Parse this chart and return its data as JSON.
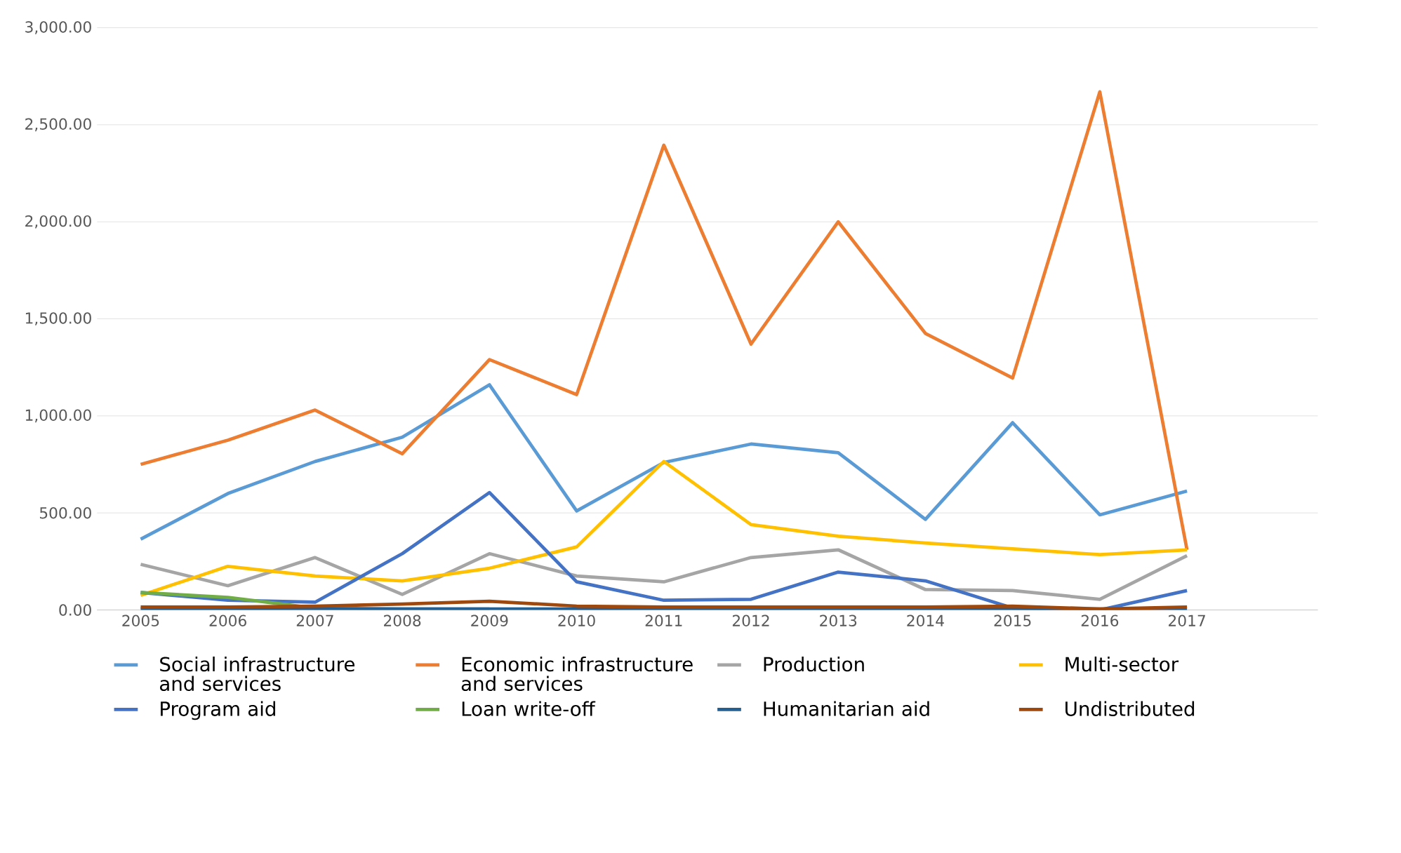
{
  "chart_data": {
    "type": "line",
    "x": [
      2005,
      2006,
      2007,
      2008,
      2009,
      2010,
      2011,
      2012,
      2013,
      2014,
      2015,
      2016,
      2017
    ],
    "xlim": [
      2004.5,
      2018.5
    ],
    "xticks": [
      2005,
      2006,
      2007,
      2008,
      2009,
      2010,
      2011,
      2012,
      2013,
      2014,
      2015,
      2016,
      2017
    ],
    "ylim": [
      0,
      3000
    ],
    "yticks": [
      {
        "value": 0,
        "label": "0.00"
      },
      {
        "value": 500,
        "label": "500.00"
      },
      {
        "value": 1000,
        "label": "1,000.00"
      },
      {
        "value": 1500,
        "label": "1,500.00"
      },
      {
        "value": 2000,
        "label": "2,000.00"
      },
      {
        "value": 2500,
        "label": "2,500.00"
      },
      {
        "value": 3000,
        "label": "3,000.00"
      }
    ],
    "grid": "y",
    "legend": "bottom",
    "marker": "none",
    "line_style": "solid",
    "series": [
      {
        "name": "Social infrastructure and services",
        "color": "#5b9bd5",
        "values": [
          365,
          600,
          765,
          890,
          1160,
          510,
          760,
          855,
          810,
          467,
          965,
          490,
          613
        ]
      },
      {
        "name": "Economic infrastructure and services",
        "color": "#ed7d31",
        "values": [
          750,
          875,
          1030,
          805,
          1290,
          1110,
          2395,
          1370,
          2000,
          1425,
          1195,
          2670,
          310
        ]
      },
      {
        "name": "Production",
        "color": "#a5a5a5",
        "values": [
          235,
          125,
          270,
          80,
          290,
          175,
          145,
          270,
          310,
          105,
          100,
          55,
          280
        ]
      },
      {
        "name": "Multi-sector",
        "color": "#ffc000",
        "values": [
          75,
          225,
          175,
          150,
          215,
          325,
          765,
          440,
          380,
          345,
          315,
          285,
          310
        ]
      },
      {
        "name": "Program aid",
        "color": "#4472c4",
        "values": [
          90,
          50,
          40,
          290,
          605,
          145,
          50,
          55,
          195,
          150,
          10,
          0,
          100
        ]
      },
      {
        "name": "Loan write-off",
        "color": "#70ad47",
        "values": [
          90,
          65,
          10,
          5,
          5,
          null,
          null,
          null,
          null,
          null,
          null,
          null,
          null
        ]
      },
      {
        "name": "Humanitarian aid",
        "color": "#255e91",
        "values": [
          5,
          5,
          5,
          5,
          5,
          5,
          5,
          5,
          5,
          5,
          5,
          5,
          5
        ]
      },
      {
        "name": "Undistributed",
        "color": "#9e480e",
        "values": [
          15,
          15,
          20,
          30,
          45,
          20,
          15,
          15,
          15,
          15,
          20,
          5,
          15
        ]
      }
    ]
  }
}
